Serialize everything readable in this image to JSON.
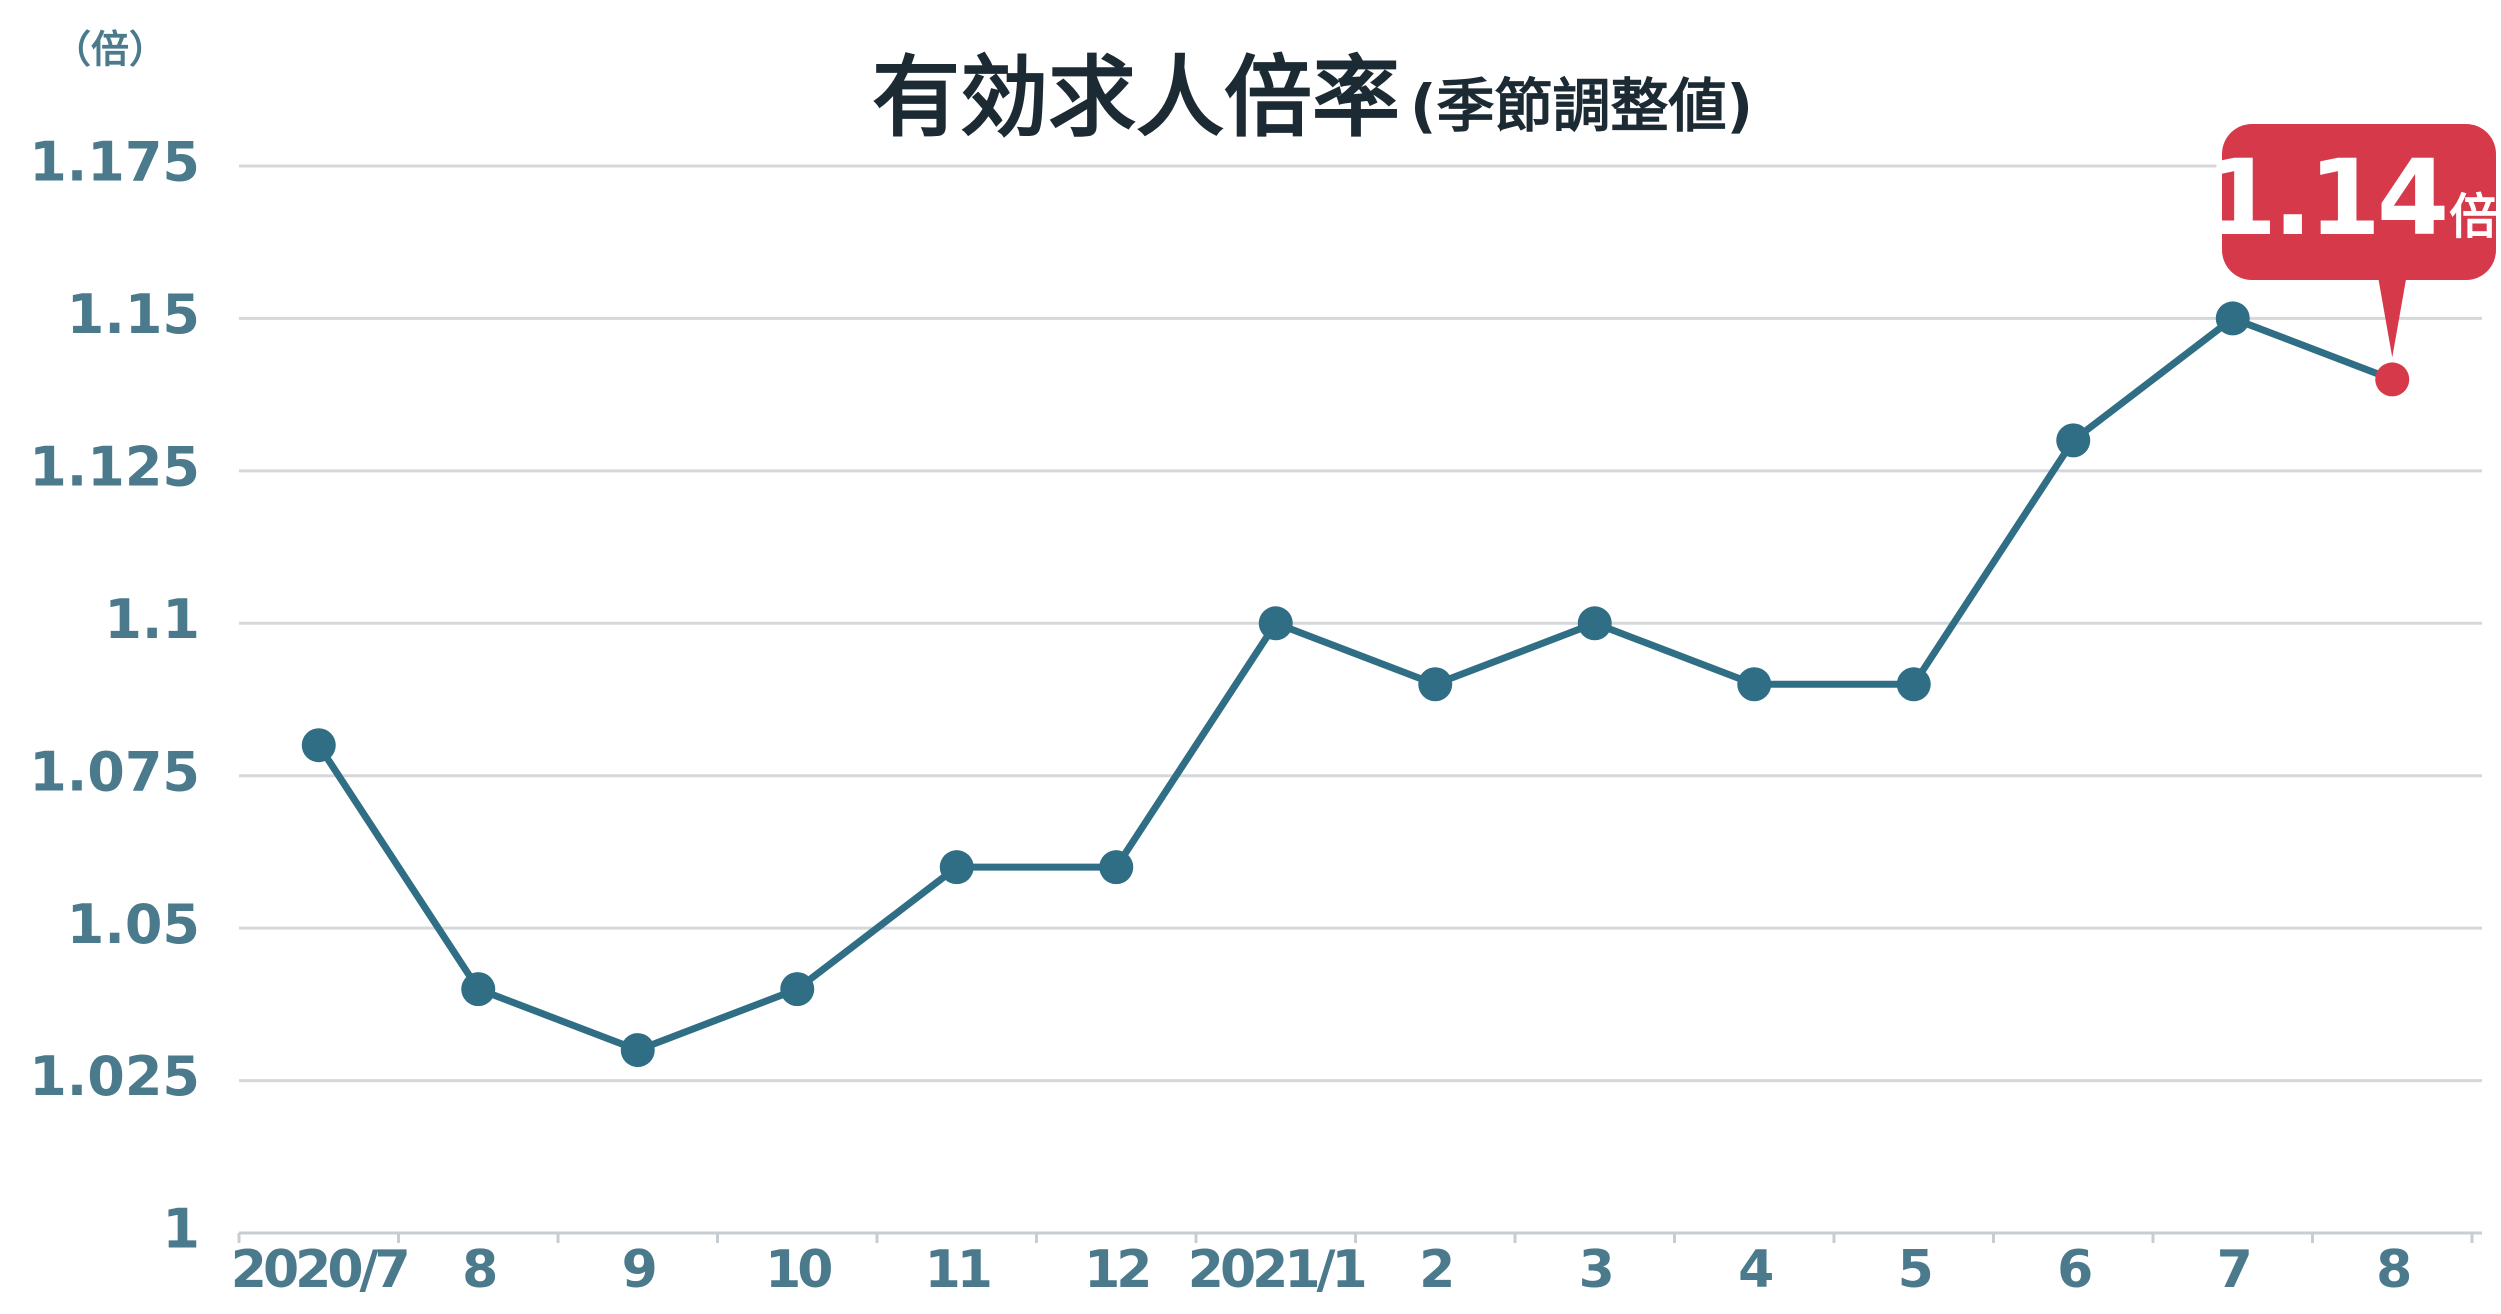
{
  "chart_data": {
    "type": "line",
    "title": "有効求人倍率",
    "subtitle": "(季節調整値)",
    "y_axis_unit": "（倍）",
    "categories": [
      "2020/7",
      "8",
      "9",
      "10",
      "11",
      "12",
      "2021/1",
      "2",
      "3",
      "4",
      "5",
      "6",
      "7",
      "8"
    ],
    "series": [
      {
        "name": "有効求人倍率",
        "color": "#2f6e85",
        "values": [
          1.08,
          1.04,
          1.03,
          1.04,
          1.06,
          1.06,
          1.1,
          1.09,
          1.1,
          1.09,
          1.09,
          1.13,
          1.15,
          1.14
        ]
      }
    ],
    "highlight_color": "#d63a4a",
    "annotation": {
      "text": "1.14",
      "unit": "倍"
    },
    "ylim": [
      1,
      1.175
    ],
    "yticks": [
      1,
      1.025,
      1.05,
      1.075,
      1.1,
      1.125,
      1.15,
      1.175
    ],
    "grid": true
  }
}
